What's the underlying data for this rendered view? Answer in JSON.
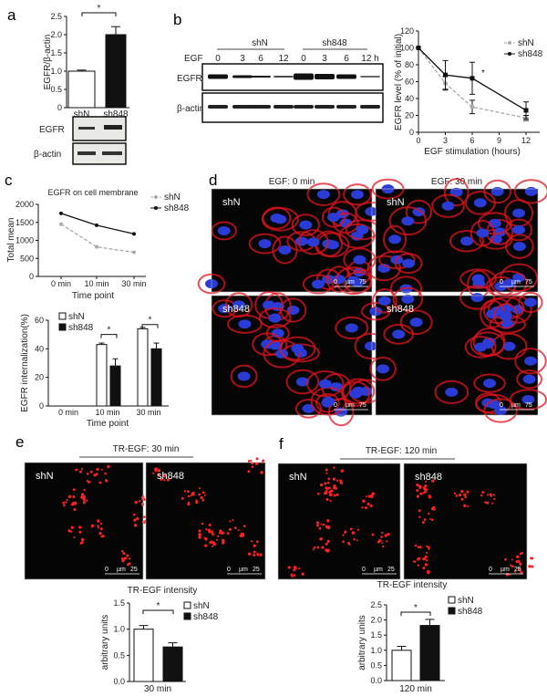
{
  "panels": {
    "a": {
      "label": "a",
      "blot_rows": [
        "EGFR",
        "β-actin"
      ]
    },
    "b": {
      "label": "b",
      "groups": [
        "shN",
        "sh848"
      ],
      "egf_label": "EGF",
      "timepoints": [
        "0",
        "3",
        "6",
        "12",
        "0",
        "3",
        "6",
        "12 h"
      ],
      "blot_rows": [
        "EGFR",
        "β-actin"
      ]
    },
    "c": {
      "label": "c"
    },
    "d": {
      "label": "d",
      "headers": [
        "EGF: 0 min",
        "EGF: 30 min"
      ],
      "image_labels": [
        "shN",
        "shN",
        "sh848",
        "sh848"
      ],
      "scale": [
        "0",
        "µm",
        "75"
      ]
    },
    "e": {
      "label": "e",
      "header": "TR-EGF: 30 min",
      "image_labels": [
        "shN",
        "sh848"
      ],
      "scale": [
        "0",
        "µm",
        "25"
      ]
    },
    "f": {
      "label": "f",
      "header": "TR-EGF: 120 min",
      "image_labels": [
        "shN",
        "sh848"
      ],
      "scale": [
        "0",
        "µm",
        "25"
      ]
    }
  },
  "colors": {
    "shN": "#aaaaaa",
    "sh848": "#111111",
    "nuclei": "#2a3bd6",
    "egfr_stain": "#e0141e",
    "tr_egf": "#ff2020"
  },
  "chart_data": [
    {
      "id": "a",
      "type": "bar",
      "title": "",
      "ylabel": "EGFR/β-actin",
      "categories": [
        "shN",
        "sh848"
      ],
      "values": [
        1.0,
        2.0
      ],
      "errors": [
        0.03,
        0.22
      ],
      "fills": [
        "#ffffff",
        "#111111"
      ],
      "ylim": [
        0,
        2.5
      ],
      "yticks": [
        "0",
        "0.5",
        "1.0",
        "1.5",
        "2.0",
        "2.5"
      ],
      "significance": "*"
    },
    {
      "id": "b",
      "type": "line",
      "xlabel": "EGF stimulation (hours)",
      "ylabel": "EGFR level (% of initial)",
      "xlim": [
        0,
        12
      ],
      "ylim": [
        0,
        120
      ],
      "xticks": [
        "0",
        "3",
        "6",
        "9",
        "12"
      ],
      "yticks": [
        "0",
        "20",
        "40",
        "60",
        "80",
        "100",
        "120"
      ],
      "legend": "top-right",
      "series": [
        {
          "name": "shN",
          "x": [
            0,
            3,
            6,
            12
          ],
          "y": [
            100,
            58,
            30,
            17
          ],
          "errors": [
            0,
            8,
            8,
            3
          ],
          "style": "dashed",
          "color": "#aaaaaa"
        },
        {
          "name": "sh848",
          "x": [
            0,
            3,
            6,
            12
          ],
          "y": [
            100,
            68,
            64,
            26
          ],
          "errors": [
            0,
            17,
            19,
            10
          ],
          "style": "solid",
          "color": "#111111"
        }
      ],
      "annotation": "*"
    },
    {
      "id": "c-top",
      "type": "line",
      "title": "EGFR on cell membrane",
      "xlabel": "Time point",
      "ylabel": "Total mean",
      "categories": [
        "0 min",
        "10 min",
        "30 min"
      ],
      "ylim": [
        0,
        2000
      ],
      "yticks": [
        "0",
        "500",
        "1000",
        "1500",
        "2000"
      ],
      "legend": "top-right",
      "series": [
        {
          "name": "shN",
          "values": [
            1450,
            820,
            670
          ],
          "color": "#aaaaaa",
          "style": "dashed"
        },
        {
          "name": "sh848",
          "values": [
            1750,
            1420,
            1180
          ],
          "color": "#111111",
          "style": "solid"
        }
      ]
    },
    {
      "id": "c-bottom",
      "type": "bar",
      "xlabel": "Time point",
      "ylabel": "EGFR internalization(%)",
      "categories": [
        "0 min",
        "10 min",
        "30 min"
      ],
      "ylim": [
        0,
        60
      ],
      "yticks": [
        "0",
        "20",
        "40",
        "60"
      ],
      "legend": "top-left",
      "series": [
        {
          "name": "shN",
          "values": [
            0,
            43,
            54
          ],
          "errors": [
            0,
            1,
            1
          ],
          "fill": "#ffffff"
        },
        {
          "name": "sh848",
          "values": [
            0,
            28,
            40
          ],
          "errors": [
            0,
            5,
            4
          ],
          "fill": "#111111"
        }
      ],
      "significance": [
        "",
        "*",
        "*"
      ]
    },
    {
      "id": "e",
      "type": "bar",
      "title": "TR-EGF intensity",
      "ylabel": "arbitrary units",
      "xlabel": "30 min",
      "ylim": [
        0,
        1.5
      ],
      "yticks": [
        "0.0",
        "0.5",
        "1.0",
        "1.5"
      ],
      "legend": "top-right",
      "series": [
        {
          "name": "shN",
          "values": [
            1.0
          ],
          "errors": [
            0.07
          ],
          "fill": "#ffffff"
        },
        {
          "name": "sh848",
          "values": [
            0.66
          ],
          "errors": [
            0.08
          ],
          "fill": "#111111"
        }
      ],
      "significance": "*"
    },
    {
      "id": "f",
      "type": "bar",
      "title": "TR-EGF intensity",
      "ylabel": "arbitrary units",
      "xlabel": "120 min",
      "ylim": [
        0,
        2.5
      ],
      "yticks": [
        "0.0",
        "0.5",
        "1.0",
        "1.5",
        "2.0",
        "2.5"
      ],
      "legend": "top-right",
      "series": [
        {
          "name": "shN",
          "values": [
            1.0
          ],
          "errors": [
            0.13
          ],
          "fill": "#ffffff"
        },
        {
          "name": "sh848",
          "values": [
            1.82
          ],
          "errors": [
            0.2
          ],
          "fill": "#111111"
        }
      ],
      "significance": "*"
    }
  ]
}
